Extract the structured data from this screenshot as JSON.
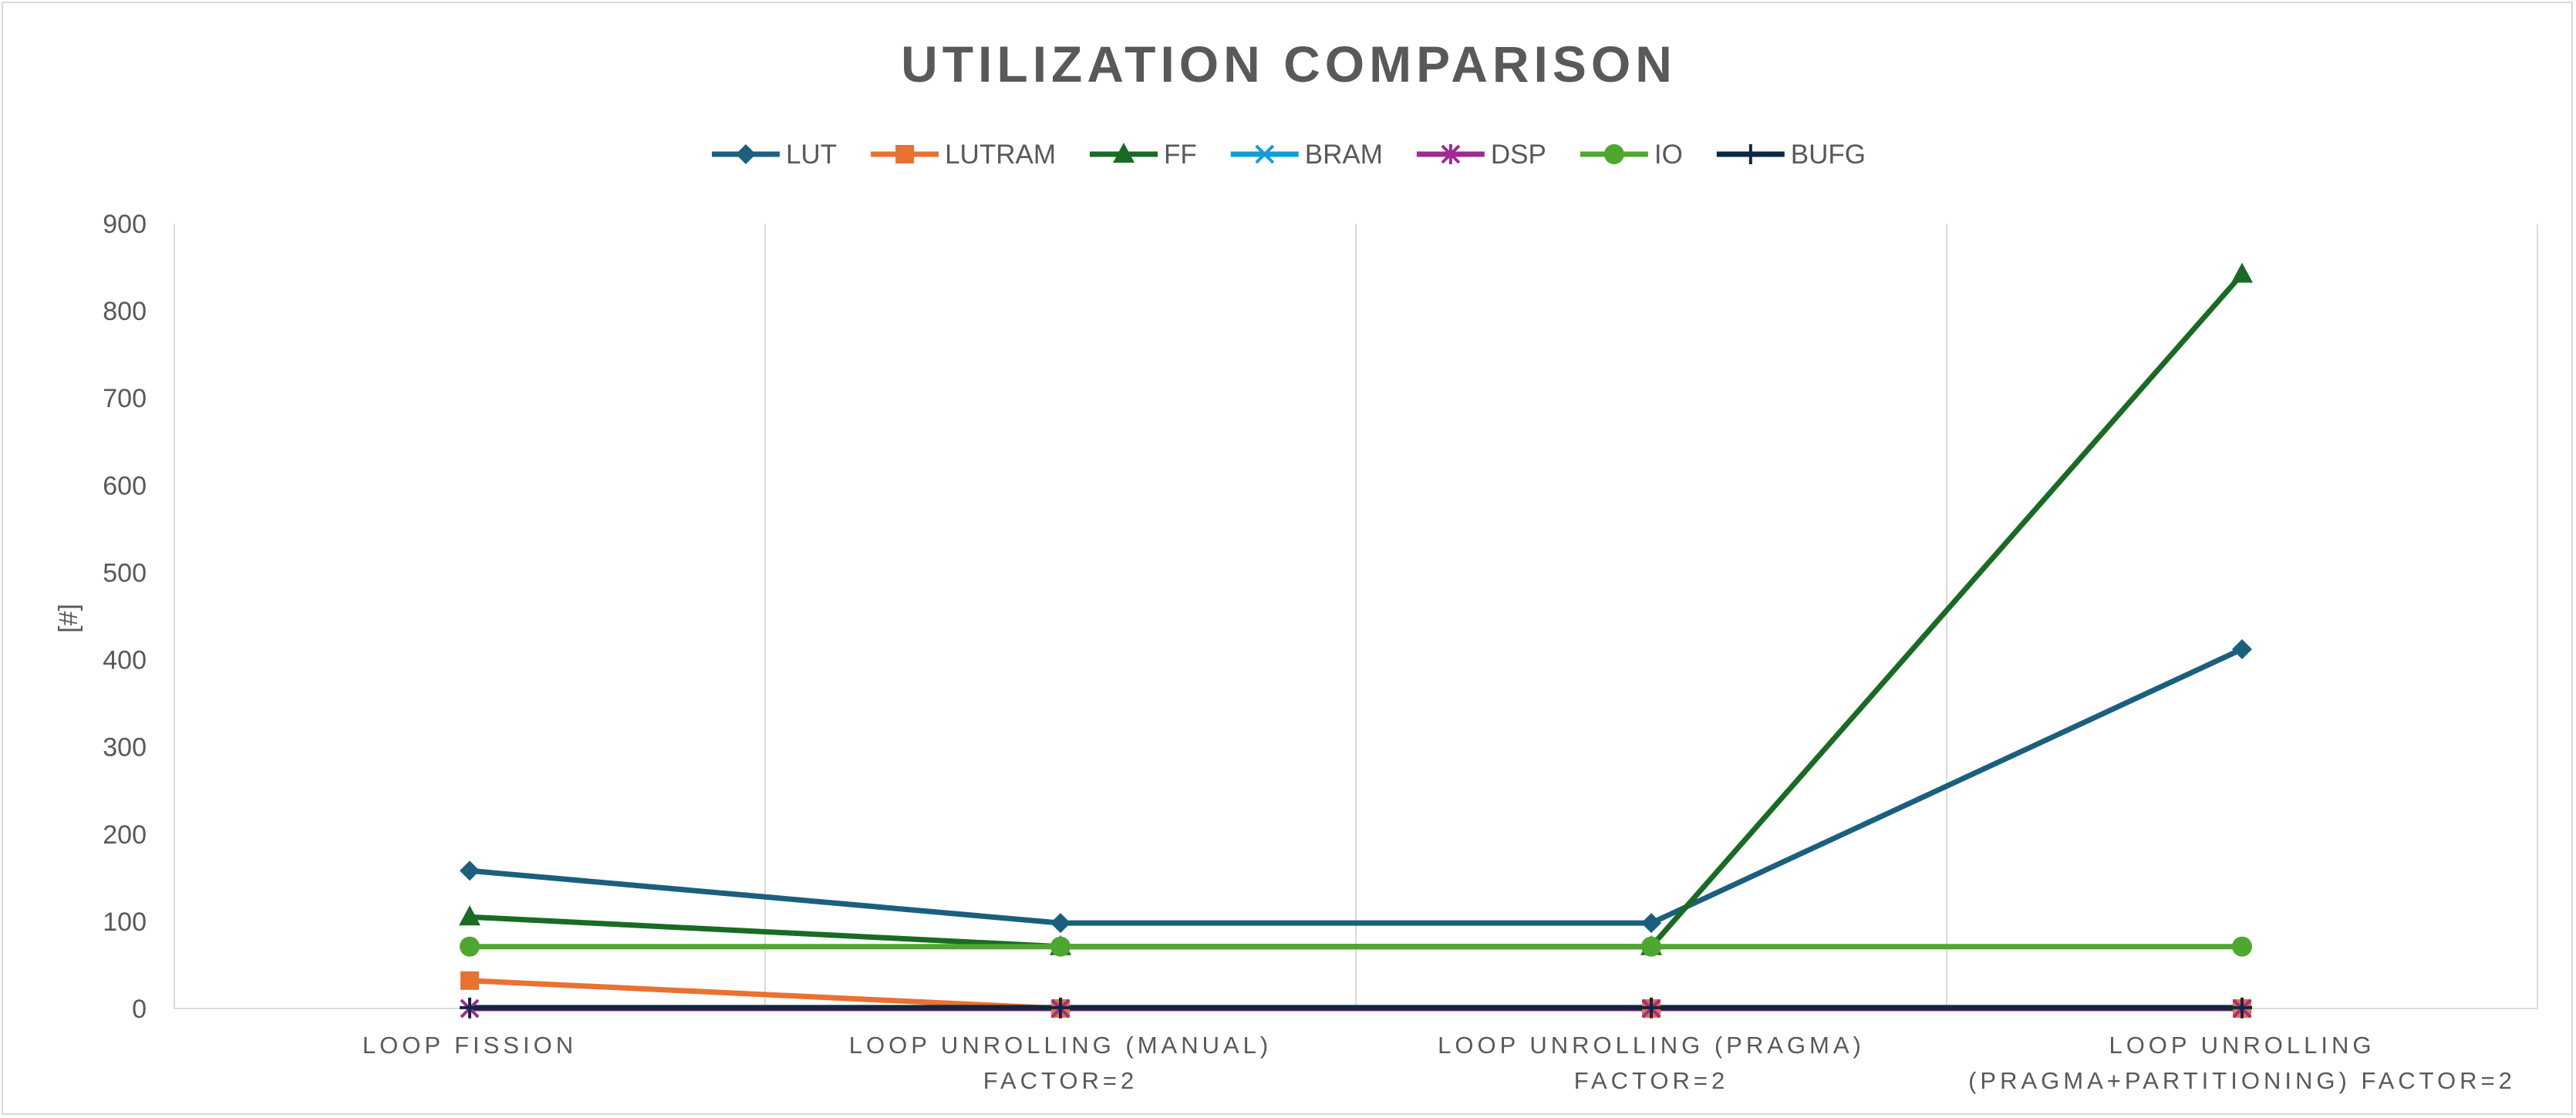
{
  "chart_data": {
    "type": "line",
    "title": "UTILIZATION COMPARISON",
    "xlabel": "",
    "ylabel": "[#]",
    "ylim": [
      0,
      900
    ],
    "yticks": [
      0,
      100,
      200,
      300,
      400,
      500,
      600,
      700,
      800,
      900
    ],
    "grid": "vertical category dividers",
    "legend_position": "top",
    "categories": [
      [
        "LOOP FISSION"
      ],
      [
        "LOOP UNROLLING (MANUAL)",
        "FACTOR=2"
      ],
      [
        "LOOP UNROLLING (PRAGMA)",
        "FACTOR=2"
      ],
      [
        "LOOP UNROLLING",
        "(PRAGMA+PARTITIONING) FACTOR=2"
      ]
    ],
    "series": [
      {
        "name": "LUT",
        "values": [
          158,
          98,
          98,
          412
        ],
        "color": "#1b5f7f",
        "marker": "diamond"
      },
      {
        "name": "LUTRAM",
        "values": [
          32,
          0,
          0,
          0
        ],
        "color": "#e97132",
        "marker": "square"
      },
      {
        "name": "FF",
        "values": [
          105,
          71,
          71,
          842
        ],
        "color": "#196b24",
        "marker": "triangle"
      },
      {
        "name": "BRAM",
        "values": [
          0,
          0,
          0,
          0
        ],
        "color": "#0f9ed5",
        "marker": "x"
      },
      {
        "name": "DSP",
        "values": [
          0,
          0,
          0,
          0
        ],
        "color": "#a02b93",
        "marker": "star"
      },
      {
        "name": "IO",
        "values": [
          71,
          71,
          71,
          71
        ],
        "color": "#4ea72e",
        "marker": "circle"
      },
      {
        "name": "BUFG",
        "values": [
          1,
          1,
          1,
          1
        ],
        "color": "#0e2841",
        "marker": "plus"
      }
    ]
  }
}
